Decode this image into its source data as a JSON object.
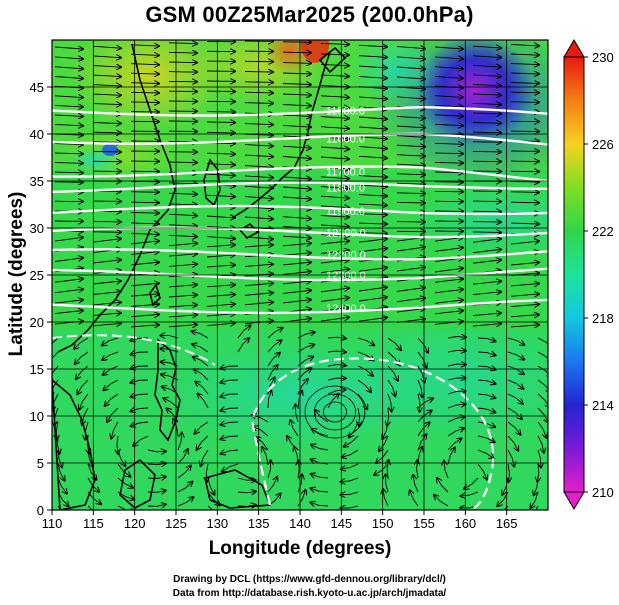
{
  "title": "GSM 00Z25Mar2025 (200.0hPa)",
  "x_axis_label": "Longitude (degrees)",
  "y_axis_label": "Latitude  (degrees)",
  "credit_line1": "Drawing by DCL (https://www.gfd-dennou.org/library/dcl/)",
  "credit_line2": "Data from http://database.rish.kyoto-u.ac.jp/arch/jmadata/",
  "map": {
    "lon_range": [
      110,
      170
    ],
    "lat_range": [
      0,
      50
    ],
    "lon_ticks": [
      110,
      115,
      120,
      125,
      130,
      135,
      140,
      145,
      150,
      155,
      160,
      165
    ],
    "lat_ticks": [
      0,
      5,
      10,
      15,
      20,
      25,
      30,
      35,
      40,
      45
    ],
    "lon_tick_labels": [
      "110",
      "115",
      "120",
      "125",
      "130",
      "135",
      "140",
      "145",
      "150",
      "155",
      "160",
      "165"
    ],
    "lat_tick_labels": [
      "0",
      "5",
      "10",
      "15",
      "20",
      "25",
      "30",
      "35",
      "40",
      "45"
    ],
    "grid": true,
    "field": "temperature (K) shaded",
    "vectors": "wind streamlines",
    "contour_color": "#ffffff"
  },
  "colorbar": {
    "min": 210,
    "max": 230,
    "labels": [
      "230",
      "226",
      "222",
      "218",
      "214",
      "210"
    ],
    "label_values": [
      230,
      226,
      222,
      218,
      214,
      210
    ],
    "stops": [
      {
        "value": 210,
        "color": "#e61fc9"
      },
      {
        "value": 212,
        "color": "#7a1ad9"
      },
      {
        "value": 214,
        "color": "#2424d2"
      },
      {
        "value": 216,
        "color": "#1a78f0"
      },
      {
        "value": 218,
        "color": "#14c8e0"
      },
      {
        "value": 220,
        "color": "#1ee39a"
      },
      {
        "value": 222,
        "color": "#31d64a"
      },
      {
        "value": 224,
        "color": "#7fde22"
      },
      {
        "value": 226,
        "color": "#f5d21f"
      },
      {
        "value": 228,
        "color": "#f57f14"
      },
      {
        "value": 230,
        "color": "#e8190f"
      }
    ]
  },
  "contours": [
    {
      "label": "11500.0",
      "lat": 42.5
    },
    {
      "label": "11600.0",
      "lat": 39.5
    },
    {
      "label": "11700.0",
      "lat": 36.0
    },
    {
      "label": "11800.0",
      "lat": 34.3
    },
    {
      "label": "11900.0",
      "lat": 31.8
    },
    {
      "label": "12100.0",
      "lat": 29.5
    },
    {
      "label": "12200.0",
      "lat": 27.2
    },
    {
      "label": "12300.0",
      "lat": 25.0
    },
    {
      "label": "12400.0",
      "lat": 21.5
    }
  ]
}
